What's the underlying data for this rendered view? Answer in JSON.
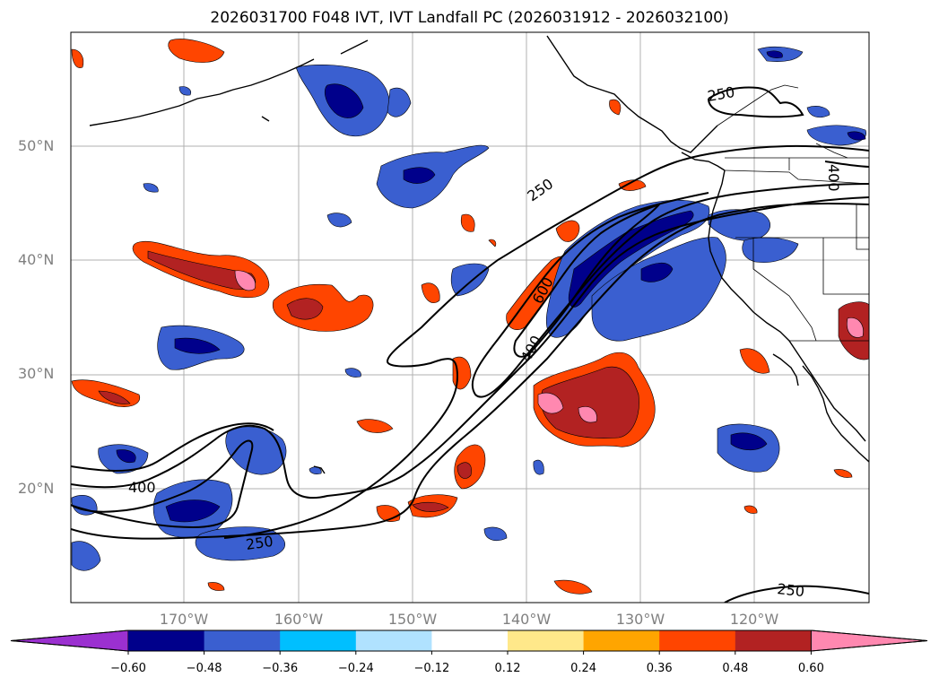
{
  "title": "2026031700 F048 IVT, IVT Landfall PC (2026031912 - 2026032100)",
  "lat_labels": [
    "50°N",
    "40°N",
    "30°N",
    "20°N"
  ],
  "lon_labels": [
    "170°W",
    "160°W",
    "150°W",
    "140°W",
    "130°W",
    "120°W"
  ],
  "contour_labels": [
    "250",
    "400",
    "600",
    "400",
    "250",
    "400",
    "250",
    "250"
  ],
  "colorbar": {
    "ticks": [
      "−0.60",
      "−0.48",
      "−0.36",
      "−0.24",
      "−0.12",
      "0.12",
      "0.24",
      "0.36",
      "0.48",
      "0.60"
    ],
    "colors": [
      "#9b30d0",
      "#00008b",
      "#3a5fd0",
      "#00bfff",
      "#b0e2ff",
      "#ffffff",
      "#ffe88a",
      "#ffa500",
      "#ff4500",
      "#b22222",
      "#ff88b0"
    ]
  }
}
